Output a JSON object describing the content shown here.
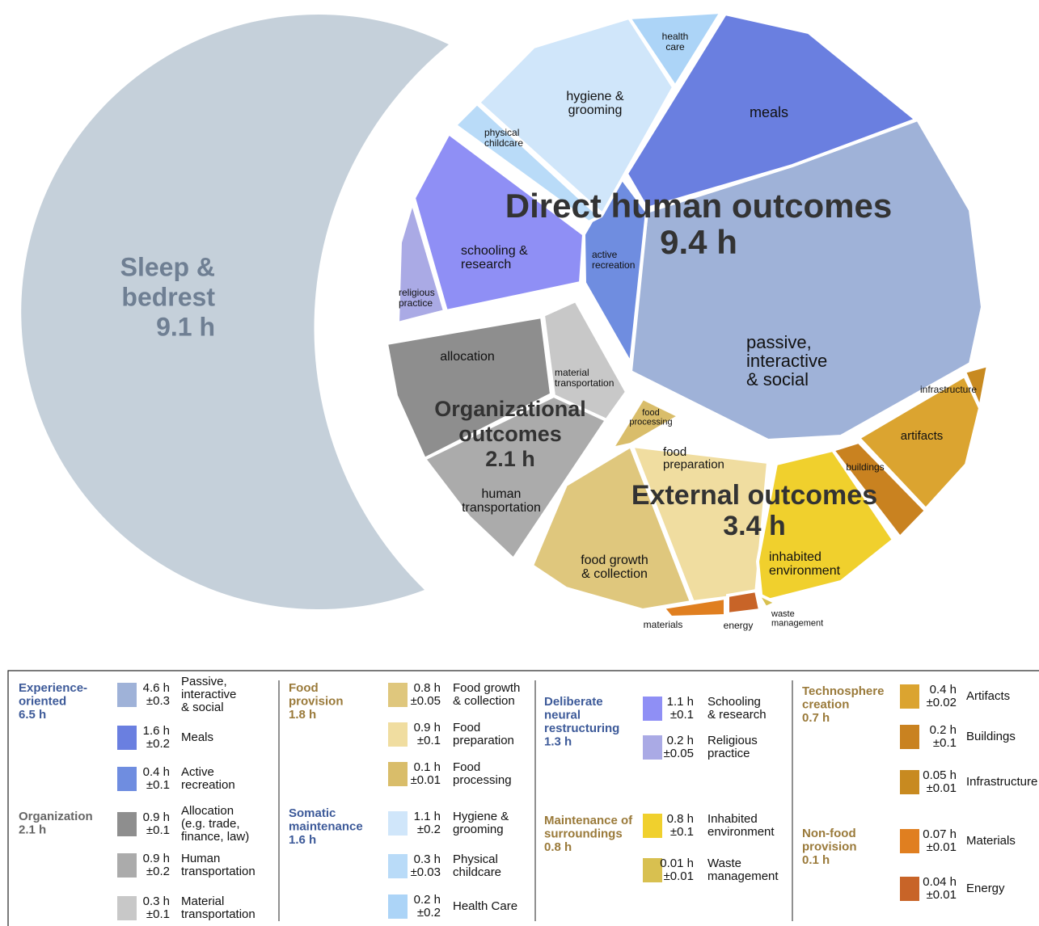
{
  "diagram": {
    "sleep": {
      "label": [
        "Sleep &",
        "bedrest"
      ],
      "hours": "9.1 h"
    },
    "groups": [
      {
        "label": [
          "Direct human outcomes"
        ],
        "hours": "9.4 h"
      },
      {
        "label": [
          "Organizational",
          "outcomes"
        ],
        "hours": "2.1 h"
      },
      {
        "label": [
          "External outcomes"
        ],
        "hours": "3.4 h"
      }
    ],
    "cells": [
      {
        "label": [
          "passive,",
          "interactive",
          "& social"
        ]
      },
      {
        "label": [
          "meals"
        ]
      },
      {
        "label": [
          "active",
          "recreation"
        ]
      },
      {
        "label": [
          "schooling &",
          "research"
        ]
      },
      {
        "label": [
          "religious",
          "practice"
        ]
      },
      {
        "label": [
          "hygiene &",
          "grooming"
        ]
      },
      {
        "label": [
          "physical",
          "childcare"
        ]
      },
      {
        "label": [
          "health",
          "care"
        ]
      },
      {
        "label": [
          "allocation"
        ]
      },
      {
        "label": [
          "material",
          "transportation"
        ]
      },
      {
        "label": [
          "human",
          "transportation"
        ]
      },
      {
        "label": [
          "food growth",
          "& collection"
        ]
      },
      {
        "label": [
          "food",
          "preparation"
        ]
      },
      {
        "label": [
          "food",
          "processing"
        ]
      },
      {
        "label": [
          "inhabited",
          "environment"
        ]
      },
      {
        "label": [
          "waste",
          "management"
        ]
      },
      {
        "label": [
          "energy"
        ]
      },
      {
        "label": [
          "materials"
        ]
      },
      {
        "label": [
          "artifacts"
        ]
      },
      {
        "label": [
          "buildings"
        ]
      },
      {
        "label": [
          "infrastructure"
        ]
      }
    ]
  },
  "legend": [
    {
      "title": [
        "Experience-",
        "oriented"
      ],
      "total": "6.5 h",
      "items": [
        {
          "value": "4.6 h",
          "error": "±0.3",
          "label": [
            "Passive,",
            "interactive",
            "& social"
          ]
        },
        {
          "value": "1.6 h",
          "error": "±0.2",
          "label": [
            "Meals"
          ]
        },
        {
          "value": "0.4 h",
          "error": "±0.1",
          "label": [
            "Active",
            "recreation"
          ]
        }
      ]
    },
    {
      "title": [
        "Organization"
      ],
      "total": "2.1 h",
      "items": [
        {
          "value": "0.9 h",
          "error": "±0.1",
          "label": [
            "Allocation",
            "(e.g. trade,",
            "finance, law)"
          ]
        },
        {
          "value": "0.9 h",
          "error": "±0.2",
          "label": [
            "Human",
            "transportation"
          ]
        },
        {
          "value": "0.3 h",
          "error": "±0.1",
          "label": [
            "Material",
            "transportation"
          ]
        }
      ]
    },
    {
      "title": [
        "Food",
        "provision"
      ],
      "total": "1.8 h",
      "items": [
        {
          "value": "0.8 h",
          "error": "±0.05",
          "label": [
            "Food growth",
            "& collection"
          ]
        },
        {
          "value": "0.9 h",
          "error": "±0.1",
          "label": [
            "Food",
            "preparation"
          ]
        },
        {
          "value": "0.1 h",
          "error": "±0.01",
          "label": [
            "Food",
            "processing"
          ]
        }
      ]
    },
    {
      "title": [
        "Somatic",
        "maintenance"
      ],
      "total": "1.6 h",
      "items": [
        {
          "value": "1.1 h",
          "error": "±0.2",
          "label": [
            "Hygiene &",
            "grooming"
          ]
        },
        {
          "value": "0.3 h",
          "error": "±0.03",
          "label": [
            "Physical",
            "childcare"
          ]
        },
        {
          "value": "0.2 h",
          "error": "±0.2",
          "label": [
            "Health Care"
          ]
        }
      ]
    },
    {
      "title": [
        "Deliberate",
        "neural",
        "restructuring"
      ],
      "total": "1.3 h",
      "items": [
        {
          "value": "1.1 h",
          "error": "±0.1",
          "label": [
            "Schooling",
            "& research"
          ]
        },
        {
          "value": "0.2 h",
          "error": "±0.05",
          "label": [
            "Religious",
            "practice"
          ]
        }
      ]
    },
    {
      "title": [
        "Maintenance of",
        "surroundings"
      ],
      "total": "0.8 h",
      "items": [
        {
          "value": "0.8 h",
          "error": "±0.1",
          "label": [
            "Inhabited",
            "environment"
          ]
        },
        {
          "value": "0.01 h",
          "error": "±0.01",
          "label": [
            "Waste",
            "management"
          ]
        }
      ]
    },
    {
      "title": [
        "Technosphere",
        "creation"
      ],
      "total": "0.7 h",
      "items": [
        {
          "value": "0.4 h",
          "error": "±0.02",
          "label": [
            "Artifacts"
          ]
        },
        {
          "value": "0.2 h",
          "error": "±0.1",
          "label": [
            "Buildings"
          ]
        },
        {
          "value": "0.05 h",
          "error": "±0.01",
          "label": [
            "Infrastructure"
          ]
        }
      ]
    },
    {
      "title": [
        "Non-food",
        "provision"
      ],
      "total": "0.1 h",
      "items": [
        {
          "value": "0.07 h",
          "error": "±0.01",
          "label": [
            "Materials"
          ]
        },
        {
          "value": "0.04 h",
          "error": "±0.01",
          "label": [
            "Energy"
          ]
        }
      ]
    }
  ]
}
